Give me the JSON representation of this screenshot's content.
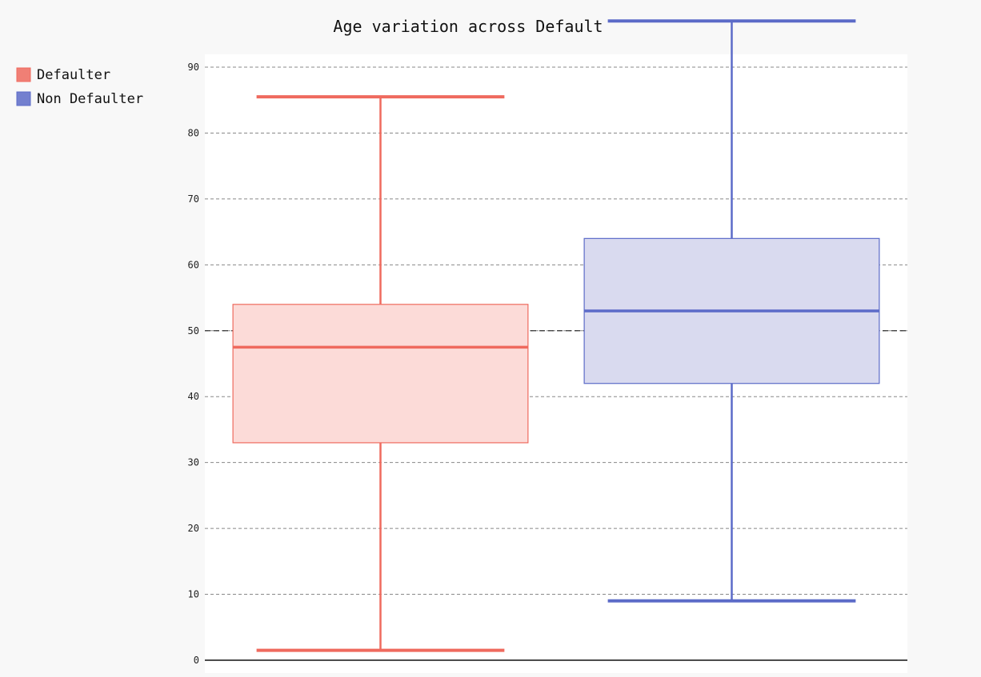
{
  "chart_data": {
    "type": "box",
    "title": "Age variation across Default",
    "xlabel": "",
    "ylabel": "",
    "ylim": [
      0,
      90
    ],
    "yticks": [
      0,
      10,
      20,
      30,
      40,
      50,
      60,
      70,
      80,
      90
    ],
    "grid": true,
    "legend_position": "left",
    "series": [
      {
        "name": "Defaulter",
        "color": "#ef6a5e",
        "fill": "#fcdbd8",
        "min": 1.5,
        "q1": 33,
        "median": 47.5,
        "q3": 54,
        "max": 85.5
      },
      {
        "name": "Non Defaulter",
        "color": "#5c6bc8",
        "fill": "#d9daef",
        "min": 9,
        "q1": 42,
        "median": 53,
        "q3": 64,
        "max": 97
      }
    ],
    "reference_line": 50
  }
}
